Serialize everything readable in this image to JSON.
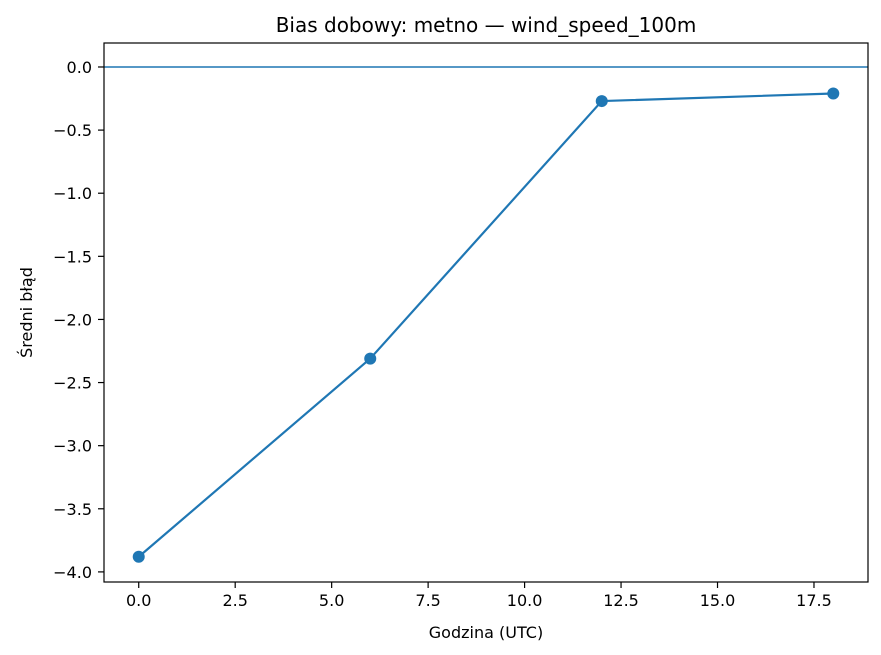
{
  "chart_data": {
    "type": "line",
    "title": "Bias dobowy: metno — wind_speed_100m",
    "xlabel": "Godzina (UTC)",
    "ylabel": "Średni błąd",
    "x": [
      0,
      6,
      12,
      18
    ],
    "series": [
      {
        "values": [
          -3.88,
          -2.31,
          -0.27,
          -0.21
        ],
        "color": "#1f77b4",
        "marker": "circle"
      }
    ],
    "xlim": [
      -0.9,
      18.9
    ],
    "ylim": [
      -4.08,
      0.19
    ],
    "xticks": [
      0.0,
      2.5,
      5.0,
      7.5,
      10.0,
      12.5,
      15.0,
      17.5
    ],
    "xtick_labels": [
      "0.0",
      "2.5",
      "5.0",
      "7.5",
      "10.0",
      "12.5",
      "15.0",
      "17.5"
    ],
    "yticks": [
      0.0,
      -0.5,
      -1.0,
      -1.5,
      -2.0,
      -2.5,
      -3.0,
      -3.5,
      -4.0
    ],
    "ytick_labels": [
      "0.0",
      "−0.5",
      "−1.0",
      "−1.5",
      "−2.0",
      "−2.5",
      "−3.0",
      "−3.5",
      "−4.0"
    ],
    "reference_line": {
      "y": 0,
      "color": "#1f77b4"
    },
    "grid": false,
    "legend": "none"
  }
}
